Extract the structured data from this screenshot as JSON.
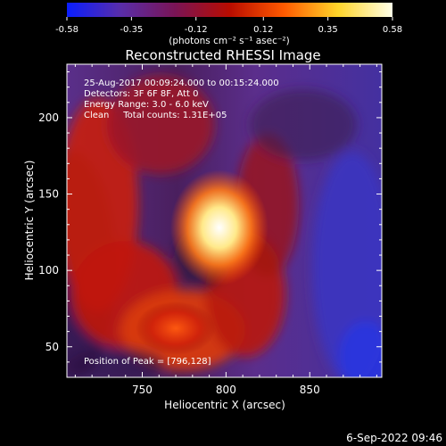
{
  "colorbar": {
    "ticks": [
      "-0.58",
      "-0.35",
      "-0.12",
      "0.12",
      "0.35",
      "0.58"
    ],
    "tick_values": [
      -0.58,
      -0.35,
      -0.12,
      0.12,
      0.35,
      0.58
    ],
    "range": [
      -0.58,
      0.58
    ],
    "units": "(photons cm⁻² s⁻¹ asec⁻²)",
    "colors": [
      "#0a1eff",
      "#5a2da8",
      "#7a1455",
      "#b80c00",
      "#ff5a00",
      "#ffd52a",
      "#ffffe8"
    ]
  },
  "chart_data": {
    "type": "heatmap",
    "title": "Reconstructed RHESSI Image",
    "xlabel": "Heliocentric X (arcsec)",
    "ylabel": "Heliocentric Y (arcsec)",
    "xlim": [
      705,
      893
    ],
    "ylim": [
      30,
      235
    ],
    "xticks": [
      750,
      800,
      850
    ],
    "yticks": [
      50,
      100,
      150,
      200
    ],
    "xtick_labels": [
      "750",
      "800",
      "850"
    ],
    "ytick_labels": [
      "50",
      "100",
      "150",
      "200"
    ],
    "peak": {
      "x": 796,
      "y": 128
    },
    "annotations": {
      "time_range": "25-Aug-2017 00:09:24.000 to 00:15:24.000",
      "detectors": "Detectors: 3F 6F 8F, Att 0",
      "energy": "Energy Range: 3.0 - 6.0 keV",
      "clean": "Clean     Total counts: 1.31E+05",
      "peak_label": "Position of Peak = [796,128]"
    }
  },
  "footer": {
    "date": "6-Sep-2022 09:46"
  }
}
